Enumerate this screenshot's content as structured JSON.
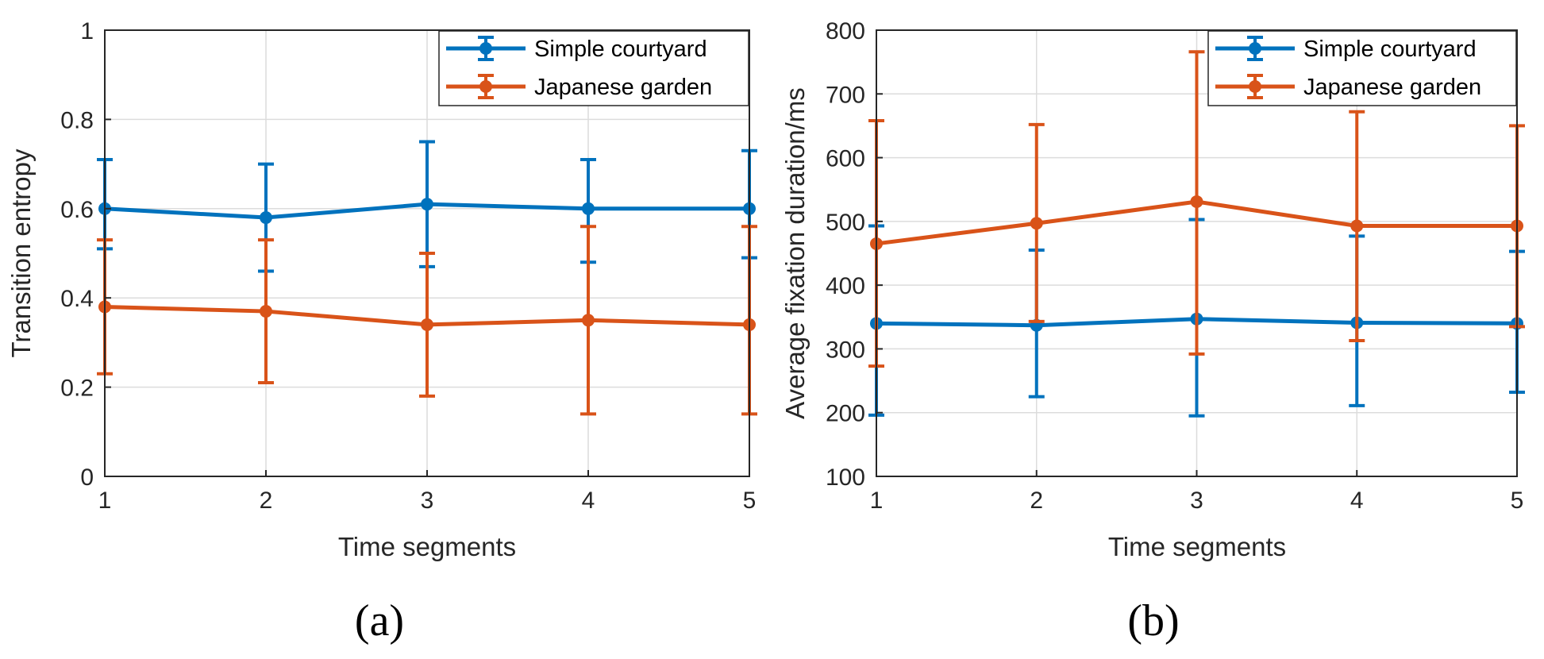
{
  "chart_data": [
    {
      "type": "line",
      "panel_label": "(a)",
      "xlabel": "Time segments",
      "ylabel": "Transition entropy",
      "x": [
        1,
        2,
        3,
        4,
        5
      ],
      "xlim": [
        1,
        5
      ],
      "ylim": [
        0,
        1
      ],
      "xticks": [
        "1",
        "2",
        "3",
        "4",
        "5"
      ],
      "yticks": [
        "0",
        "0.2",
        "0.4",
        "0.6",
        "0.8",
        "1"
      ],
      "ytick_values": [
        0,
        0.2,
        0.4,
        0.6,
        0.8,
        1
      ],
      "grid": true,
      "legend": "top-right",
      "error_bars": true,
      "series": [
        {
          "name": "Simple courtyard",
          "color": "#0072BD",
          "values": [
            0.6,
            0.58,
            0.61,
            0.6,
            0.6
          ],
          "error_low": [
            0.51,
            0.46,
            0.47,
            0.48,
            0.49
          ],
          "error_high": [
            0.71,
            0.7,
            0.75,
            0.71,
            0.73
          ]
        },
        {
          "name": "Japanese garden",
          "color": "#D95319",
          "values": [
            0.38,
            0.37,
            0.34,
            0.35,
            0.34
          ],
          "error_low": [
            0.23,
            0.21,
            0.18,
            0.14,
            0.14
          ],
          "error_high": [
            0.53,
            0.53,
            0.5,
            0.56,
            0.56
          ]
        }
      ]
    },
    {
      "type": "line",
      "panel_label": "(b)",
      "xlabel": "Time segments",
      "ylabel": "Average fixation duration/ms",
      "x": [
        1,
        2,
        3,
        4,
        5
      ],
      "xlim": [
        1,
        5
      ],
      "ylim": [
        100,
        800
      ],
      "xticks": [
        "1",
        "2",
        "3",
        "4",
        "5"
      ],
      "yticks": [
        "100",
        "200",
        "300",
        "400",
        "500",
        "600",
        "700",
        "800"
      ],
      "ytick_values": [
        100,
        200,
        300,
        400,
        500,
        600,
        700,
        800
      ],
      "grid": true,
      "legend": "top-right",
      "error_bars": true,
      "series": [
        {
          "name": "Simple courtyard",
          "color": "#0072BD",
          "values": [
            340,
            337,
            347,
            341,
            340
          ],
          "error_low": [
            196,
            225,
            195,
            211,
            232
          ],
          "error_high": [
            493,
            455,
            503,
            477,
            453
          ]
        },
        {
          "name": "Japanese garden",
          "color": "#D95319",
          "values": [
            465,
            497,
            531,
            493,
            493
          ],
          "error_low": [
            273,
            343,
            292,
            313,
            335
          ],
          "error_high": [
            658,
            652,
            766,
            672,
            650
          ]
        }
      ]
    }
  ]
}
